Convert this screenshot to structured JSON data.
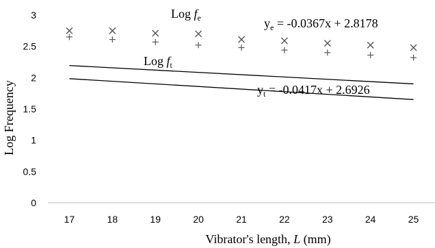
{
  "chart_data": {
    "type": "scatter",
    "xlabel": "Vibrator's length, L (mm)",
    "ylabel": "Log Frequency",
    "xlim": [
      16.5,
      25.5
    ],
    "ylim": [
      0,
      3
    ],
    "x_ticks": [
      "17",
      "18",
      "19",
      "20",
      "21",
      "22",
      "23",
      "24",
      "25"
    ],
    "y_ticks": [
      "0",
      "0.5",
      "1",
      "1.5",
      "2",
      "2.5",
      "3"
    ],
    "grid": false,
    "legend": "none",
    "series": [
      {
        "name": "Log fe",
        "marker": "x",
        "x": [
          17,
          18,
          19,
          20,
          21,
          22,
          23,
          24,
          25
        ],
        "y": [
          2.75,
          2.75,
          2.71,
          2.7,
          2.61,
          2.59,
          2.55,
          2.52,
          2.48
        ],
        "trendline": {
          "slope": -0.0367,
          "intercept": 2.8178,
          "x_from": 17,
          "x_to": 25
        }
      },
      {
        "name": "Log ft",
        "marker": "+",
        "x": [
          17,
          18,
          19,
          20,
          21,
          22,
          23,
          24,
          25
        ],
        "y": [
          2.65,
          2.61,
          2.57,
          2.52,
          2.48,
          2.44,
          2.4,
          2.36,
          2.32
        ],
        "trendline": {
          "slope": -0.0417,
          "intercept": 2.6926,
          "x_from": 17,
          "x_to": 25
        }
      }
    ],
    "annotations": {
      "fe_label": {
        "main": "Log ",
        "italic": "f",
        "sub": "e"
      },
      "ft_label": {
        "main": "Log ",
        "italic": "f",
        "sub": "t"
      },
      "fe_equation": {
        "y": "y",
        "sub": "e",
        "rest": " = -0.0367x + 2.8178"
      },
      "ft_equation": {
        "y": "y",
        "sub": "t",
        "rest": " = -0.0417x + 2.6926"
      }
    },
    "colors": {
      "line": "#000000",
      "marker": "#555555",
      "axis": "#bfbfbf"
    }
  }
}
